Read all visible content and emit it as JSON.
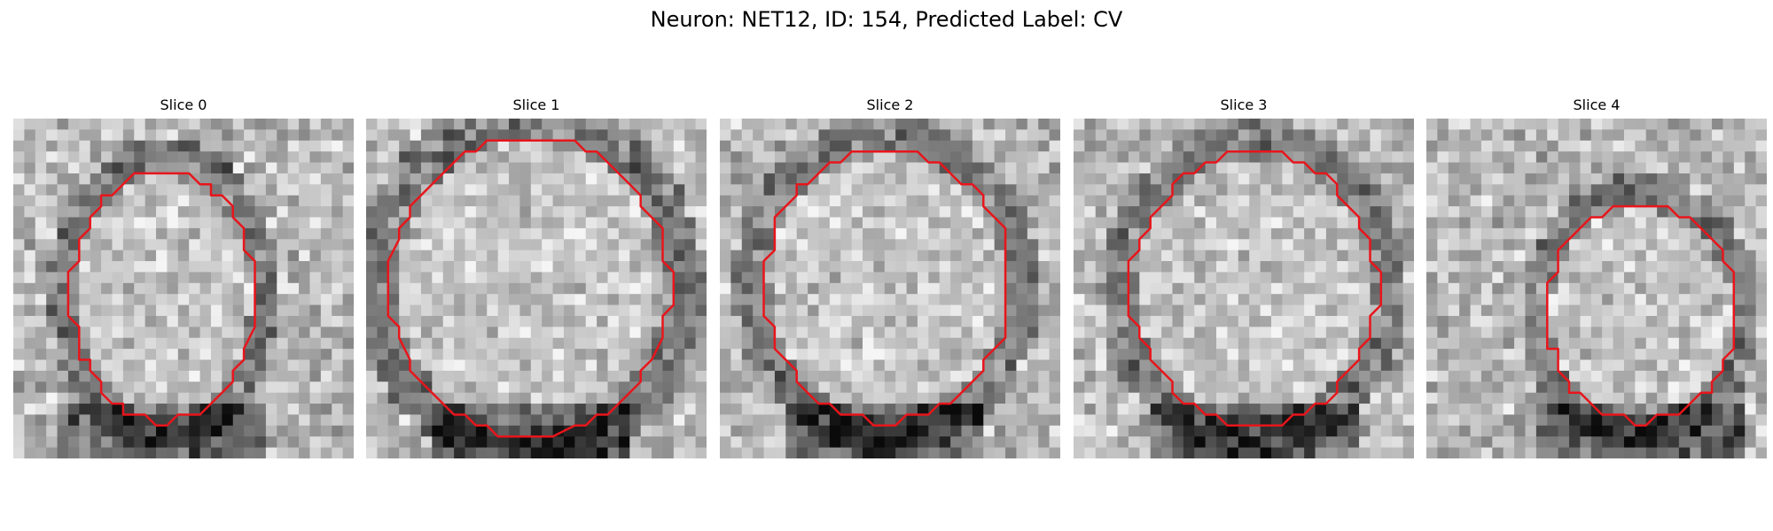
{
  "figure": {
    "title": "Neuron: NET12, ID: 154, Predicted Label: CV"
  },
  "panels": [
    {
      "title": "Slice 0",
      "contour_color": "#e8151b"
    },
    {
      "title": "Slice 1",
      "contour_color": "#e8151b"
    },
    {
      "title": "Slice 2",
      "contour_color": "#e8151b"
    },
    {
      "title": "Slice 3",
      "contour_color": "#e8151b"
    },
    {
      "title": "Slice 4",
      "contour_color": "#e8151b"
    }
  ]
}
